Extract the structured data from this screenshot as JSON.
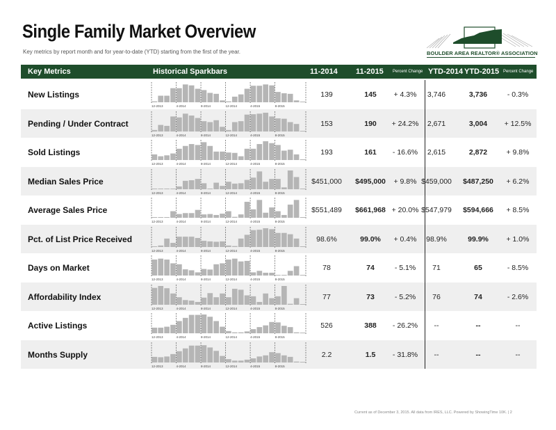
{
  "title": "Single Family Market Overview",
  "subtitle": "Key metrics by report month and for year-to-date (YTD) starting from the first of the year.",
  "logo_text": "BOULDER AREA REALTOR® ASSOCIATION",
  "header": {
    "metrics": "Key Metrics",
    "sparkbars": "Historical Sparkbars",
    "c1": "11-2014",
    "c2": "11-2015",
    "c3": "Percent Change",
    "c4": "YTD-2014",
    "c5": "YTD-2015",
    "c6": "Percent Change"
  },
  "spark_labels": [
    "12-2013",
    "4-2014",
    "8-2014",
    "12-2014",
    "4-2015",
    "8-2015"
  ],
  "rows": [
    {
      "label": "New Listings",
      "v1": "139",
      "v2": "145",
      "p1": "+ 4.3%",
      "y1": "3,746",
      "y2": "3,736",
      "p2": "- 0.3%",
      "bars": [
        5,
        35,
        35,
        75,
        75,
        95,
        90,
        72,
        65,
        50,
        45,
        10,
        5,
        30,
        42,
        72,
        88,
        88,
        95,
        90,
        55,
        48,
        45,
        10,
        0
      ]
    },
    {
      "label": "Pending / Under Contract",
      "v1": "153",
      "v2": "190",
      "p1": "+ 24.2%",
      "y1": "2,671",
      "y2": "3,004",
      "p1b": "",
      "p2": "+ 12.5%",
      "bars": [
        8,
        35,
        30,
        80,
        75,
        95,
        85,
        72,
        55,
        50,
        60,
        25,
        8,
        50,
        55,
        90,
        92,
        95,
        100,
        80,
        70,
        68,
        50,
        40,
        0
      ]
    },
    {
      "label": "Sold Listings",
      "v1": "193",
      "v2": "161",
      "p1": "- 16.6%",
      "y1": "2,615",
      "y2": "2,872",
      "p2": "+ 9.8%",
      "bars": [
        30,
        20,
        25,
        35,
        60,
        75,
        85,
        80,
        95,
        75,
        45,
        45,
        40,
        38,
        20,
        60,
        60,
        85,
        100,
        90,
        80,
        50,
        55,
        30,
        0
      ]
    },
    {
      "label": "Median Sales Price",
      "v1": "$451,000",
      "v2": "$495,000",
      "p1": "+ 9.8%",
      "y1": "$459,000",
      "y2": "$487,250",
      "p2": "+ 6.2%",
      "bars": [
        2,
        2,
        2,
        3,
        15,
        45,
        48,
        55,
        32,
        3,
        35,
        18,
        40,
        30,
        32,
        50,
        62,
        95,
        40,
        55,
        55,
        10,
        100,
        65,
        0
      ]
    },
    {
      "label": "Average Sales Price",
      "v1": "$551,489",
      "v2": "$661,968",
      "p1": "+ 20.0%",
      "y1": "$547,979",
      "y2": "$594,666",
      "p2": "+ 8.5%",
      "bars": [
        2,
        2,
        2,
        35,
        20,
        25,
        25,
        42,
        18,
        20,
        15,
        22,
        35,
        5,
        18,
        85,
        45,
        95,
        27,
        55,
        35,
        15,
        70,
        95,
        0
      ]
    },
    {
      "label": "Pct. of List Price Received",
      "v1": "98.6%",
      "v2": "99.0%",
      "p1": "+ 0.4%",
      "y1": "98.9%",
      "y2": "99.9%",
      "p2": "+ 1.0%",
      "bars": [
        3,
        8,
        45,
        22,
        55,
        55,
        55,
        48,
        33,
        30,
        28,
        30,
        8,
        5,
        45,
        65,
        90,
        92,
        100,
        95,
        75,
        75,
        68,
        45,
        0
      ]
    },
    {
      "label": "Days on Market",
      "v1": "78",
      "v2": "74",
      "p1": "- 5.1%",
      "y1": "71",
      "y2": "65",
      "p2": "- 8.5%",
      "bars": [
        85,
        90,
        85,
        65,
        60,
        33,
        28,
        17,
        35,
        32,
        60,
        65,
        85,
        90,
        75,
        78,
        17,
        25,
        15,
        15,
        2,
        3,
        25,
        50,
        0
      ]
    },
    {
      "label": "Affordability Index",
      "v1": "77",
      "v2": "73",
      "p1": "- 5.2%",
      "y1": "76",
      "y2": "74",
      "p2": "- 2.6%",
      "bars": [
        90,
        100,
        88,
        60,
        40,
        25,
        22,
        15,
        38,
        62,
        40,
        60,
        40,
        85,
        80,
        50,
        45,
        15,
        60,
        35,
        45,
        100,
        5,
        35,
        0
      ]
    },
    {
      "label": "Active Listings",
      "v1": "526",
      "v2": "388",
      "p1": "- 26.2%",
      "y1": "--",
      "y2": "--",
      "p2": "--",
      "bars": [
        30,
        30,
        35,
        45,
        65,
        82,
        98,
        98,
        100,
        88,
        65,
        35,
        12,
        5,
        5,
        10,
        22,
        33,
        42,
        60,
        58,
        40,
        33,
        5,
        0
      ]
    },
    {
      "label": "Months Supply",
      "v1": "2.2",
      "v2": "1.5",
      "p1": "- 31.8%",
      "y1": "--",
      "y2": "--",
      "p2": "--",
      "bars": [
        30,
        28,
        32,
        45,
        60,
        75,
        90,
        90,
        92,
        80,
        62,
        35,
        18,
        10,
        10,
        15,
        22,
        32,
        38,
        55,
        50,
        38,
        30,
        5,
        0
      ]
    }
  ],
  "footer": "Current as of December 3, 2015. All data from IRES, LLC. Powered by ShowingTime 10K. | 2",
  "colors": {
    "header": "#1e4d2b",
    "bar": "#b5b5b5",
    "alt_row": "#efefef"
  }
}
